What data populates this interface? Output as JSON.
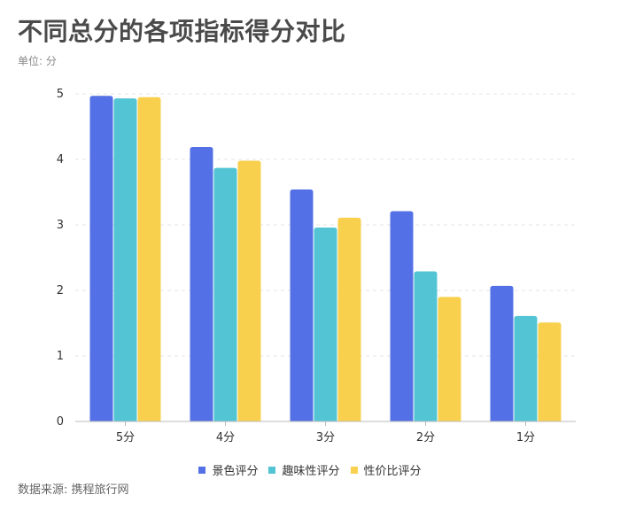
{
  "header": {
    "title": "不同总分的各项指标得分对比",
    "unit": "单位: 分"
  },
  "footer": {
    "source": "数据来源: 携程旅行网"
  },
  "chart_data": {
    "type": "bar",
    "title": "不同总分的各项指标得分对比",
    "xlabel": "",
    "ylabel": "",
    "categories": [
      "5分",
      "4分",
      "3分",
      "2分",
      "1分"
    ],
    "ylim": [
      0,
      5
    ],
    "yticks": [
      "0",
      "1",
      "2",
      "3",
      "4",
      "5"
    ],
    "grid": true,
    "legend_position": "bottom",
    "series": [
      {
        "name": "景色评分",
        "color": "#5470e6",
        "values": [
          4.97,
          4.19,
          3.54,
          3.21,
          2.07
        ]
      },
      {
        "name": "趣味性评分",
        "color": "#52c4d4",
        "values": [
          4.93,
          3.87,
          2.96,
          2.29,
          1.61
        ]
      },
      {
        "name": "性价比评分",
        "color": "#f9d04e",
        "values": [
          4.95,
          3.98,
          3.11,
          1.9,
          1.51
        ]
      }
    ]
  }
}
